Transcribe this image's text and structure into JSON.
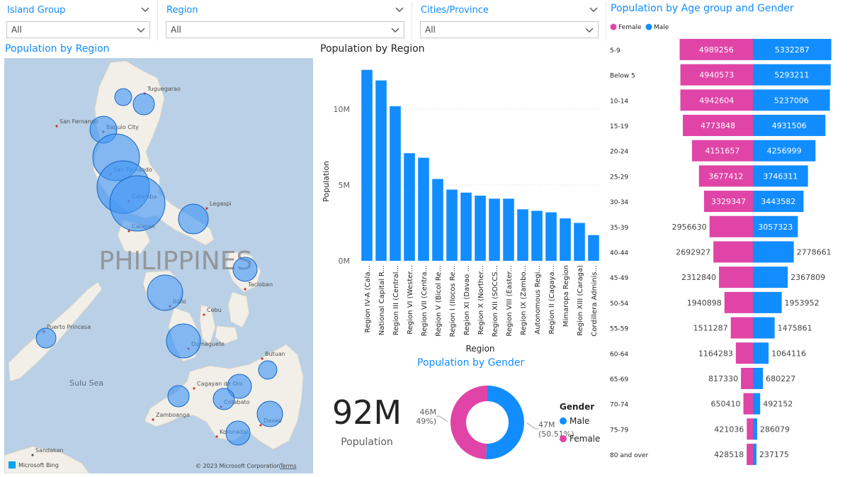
{
  "slicers": [
    {
      "title": "Island Group",
      "value": "All"
    },
    {
      "title": "Region",
      "value": "All"
    },
    {
      "title": "Cities/Province",
      "value": "All"
    }
  ],
  "map": {
    "title": "Population by Region",
    "country_label": "PHILIPPINES",
    "places": [
      "Tuguegarao",
      "San Fernando",
      "Baguio City",
      "San Fernando",
      "Calamba",
      "Calapan",
      "Legaspi",
      "Tacloban",
      "Iloilo",
      "Cebu",
      "Puerto Princesa",
      "Dumaguete",
      "Butuan",
      "Cagayan de Oro",
      "Cotabato",
      "Zamboanga",
      "Davao",
      "Koronadal",
      "Sandakan"
    ],
    "sea_label": "Sulu Sea",
    "bing_label": "Microsoft Bing",
    "copyright": "© 2023 Microsoft Corporation",
    "terms": "Terms"
  },
  "bar_chart": {
    "title": "Population by Region",
    "type": "bar",
    "xlabel": "Region",
    "ylabel": "Population",
    "ylim": [
      0,
      13000000
    ],
    "y_ticks": [
      {
        "value": 0,
        "label": "0M"
      },
      {
        "value": 5000000,
        "label": "5M"
      },
      {
        "value": 10000000,
        "label": "10M"
      }
    ],
    "categories": [
      "Region IV-A (Cala...",
      "National Capital R...",
      "Region III (Central...",
      "Region VI (Wester...",
      "Region VII (Centra...",
      "Region V (Bicol Re...",
      "Region I (Ilocos Re...",
      "Region XI (Davao ...",
      "Region X (Norther...",
      "Region XII (SOCCS...",
      "Region VIII (Easter...",
      "Region IX (Zambo...",
      "Autonomous Regi...",
      "Region II (Cagaya...",
      "Mimaropa Region",
      "Region XIII (Caraga)",
      "Cordillera Adminis..."
    ],
    "values": [
      12600000,
      11900000,
      10200000,
      7100000,
      6800000,
      5400000,
      4700000,
      4500000,
      4300000,
      4100000,
      4100000,
      3400000,
      3300000,
      3200000,
      2800000,
      2500000,
      1700000
    ],
    "color": "#118dff"
  },
  "card": {
    "value": "92M",
    "label": "Population"
  },
  "donut": {
    "title": "Population by Gender",
    "type": "pie",
    "legend_title": "Gender",
    "slices": [
      {
        "name": "Male",
        "value": 50.51,
        "label": "47M",
        "pct": "(50.51%)",
        "color": "#118dff"
      },
      {
        "name": "Female",
        "value": 49.49,
        "label": "46M",
        "pct": "(49.49%)",
        "color": "#e044a7"
      }
    ]
  },
  "pyramid": {
    "title": "Population by Age group and Gender",
    "type": "bar",
    "legend": [
      {
        "name": "Female",
        "color": "#e044a7"
      },
      {
        "name": "Male",
        "color": "#118dff"
      }
    ],
    "max": 5400000,
    "rows": [
      {
        "age": "5-9",
        "female": 4989256,
        "male": 5332287
      },
      {
        "age": "Below 5",
        "female": 4940573,
        "male": 5293211
      },
      {
        "age": "10-14",
        "female": 4942604,
        "male": 5237006
      },
      {
        "age": "15-19",
        "female": 4773848,
        "male": 4931506
      },
      {
        "age": "20-24",
        "female": 4151657,
        "male": 4256999
      },
      {
        "age": "25-29",
        "female": 3677412,
        "male": 3746311
      },
      {
        "age": "30-34",
        "female": 3329347,
        "male": 3443582
      },
      {
        "age": "35-39",
        "female": 2956630,
        "male": 3057323
      },
      {
        "age": "40-44",
        "female": 2692927,
        "male": 2778661
      },
      {
        "age": "45-49",
        "female": 2312840,
        "male": 2367809
      },
      {
        "age": "50-54",
        "female": 1940898,
        "male": 1953952
      },
      {
        "age": "55-59",
        "female": 1511287,
        "male": 1475861
      },
      {
        "age": "60-64",
        "female": 1164283,
        "male": 1064116
      },
      {
        "age": "65-69",
        "female": 817330,
        "male": 680227
      },
      {
        "age": "70-74",
        "female": 650410,
        "male": 492152
      },
      {
        "age": "75-79",
        "female": 421036,
        "male": 286079
      },
      {
        "age": "80 and over",
        "female": 428518,
        "male": 237175
      }
    ]
  }
}
